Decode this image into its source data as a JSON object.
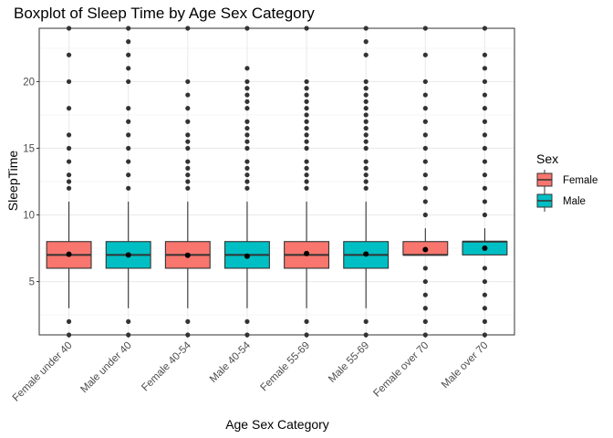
{
  "chart_data": {
    "type": "boxplot",
    "title": "Boxplot of Sleep Time by Age Sex Category",
    "xlabel": "Age Sex Category",
    "ylabel": "SleepTime",
    "ylim": [
      1,
      24
    ],
    "yticks": [
      5,
      10,
      15,
      20
    ],
    "grid": true,
    "legend_placement": "right",
    "legend": {
      "title": "Sex",
      "items": [
        {
          "label": "Female",
          "color": "#F8766D"
        },
        {
          "label": "Male",
          "color": "#00BFC4"
        }
      ]
    },
    "categories": [
      "Female under 40",
      "Male under 40",
      "Female 40-54",
      "Male 40-54",
      "Female 55-69",
      "Male 55-69",
      "Female over 70",
      "Male over 70"
    ],
    "sex": [
      "Female",
      "Male",
      "Female",
      "Male",
      "Female",
      "Male",
      "Female",
      "Male"
    ],
    "boxes": [
      {
        "q1": 6,
        "median": 7,
        "q3": 8,
        "whisker_low": 3,
        "whisker_high": 11,
        "mean": 7.05,
        "outliers": [
          1,
          2,
          12,
          12.5,
          13,
          14,
          15,
          16,
          18,
          20,
          22,
          24
        ]
      },
      {
        "q1": 6,
        "median": 7,
        "q3": 8,
        "whisker_low": 3,
        "whisker_high": 11,
        "mean": 7.0,
        "outliers": [
          1,
          2,
          12,
          13,
          14,
          15,
          16,
          17,
          18,
          20,
          21,
          22,
          23,
          24
        ]
      },
      {
        "q1": 6,
        "median": 7,
        "q3": 8,
        "whisker_low": 3,
        "whisker_high": 11,
        "mean": 6.97,
        "outliers": [
          1,
          2,
          12,
          12.5,
          13,
          13.5,
          14,
          15,
          15.5,
          16,
          17,
          18,
          19,
          20,
          24
        ]
      },
      {
        "q1": 6,
        "median": 7,
        "q3": 8,
        "whisker_low": 3,
        "whisker_high": 11,
        "mean": 6.9,
        "outliers": [
          1,
          2,
          12,
          12.5,
          13,
          13.5,
          14,
          15,
          15.5,
          16,
          16.5,
          17,
          18,
          18.5,
          19,
          19.5,
          20,
          21,
          24
        ]
      },
      {
        "q1": 6,
        "median": 7,
        "q3": 8,
        "whisker_low": 3,
        "whisker_high": 11,
        "mean": 7.1,
        "outliers": [
          1,
          2,
          12,
          12.5,
          13,
          13.5,
          14,
          15,
          15.5,
          16,
          16.5,
          17,
          17.5,
          18,
          18.5,
          19,
          19.5,
          20,
          24
        ]
      },
      {
        "q1": 6,
        "median": 7,
        "q3": 8,
        "whisker_low": 3,
        "whisker_high": 11,
        "mean": 7.07,
        "outliers": [
          1,
          2,
          12,
          12.5,
          13,
          13.5,
          14,
          15,
          15.5,
          16,
          16.5,
          17,
          17.5,
          18,
          18.5,
          19,
          19.5,
          20,
          22,
          23,
          24
        ]
      },
      {
        "q1": 7,
        "median": 7,
        "q3": 8,
        "whisker_low": 7,
        "whisker_high": 9,
        "mean": 7.4,
        "outliers": [
          1,
          2,
          3,
          4,
          5,
          6,
          10,
          11,
          12,
          13,
          14,
          15,
          16,
          17,
          18,
          19,
          20,
          22,
          24
        ]
      },
      {
        "q1": 7,
        "median": 8,
        "q3": 8,
        "whisker_low": 7,
        "whisker_high": 9,
        "mean": 7.5,
        "outliers": [
          1,
          2,
          3,
          4,
          5,
          6,
          10,
          11,
          12,
          13,
          14,
          15,
          16,
          17,
          18,
          19,
          20,
          21,
          22,
          24
        ]
      }
    ]
  }
}
